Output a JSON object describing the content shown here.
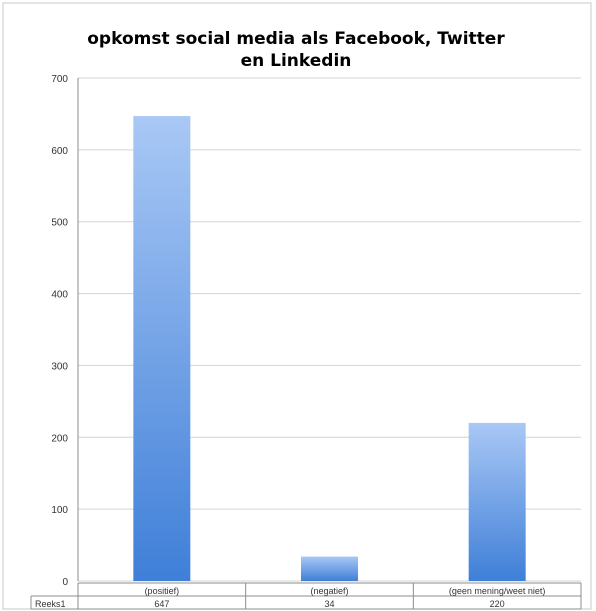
{
  "chart_data": {
    "type": "bar",
    "title_line1": "opkomst social media als Facebook, Twitter",
    "title_line2": "en Linkedin",
    "categories": [
      "(positief)",
      "(negatief)",
      "(geen mening/weet niet)"
    ],
    "series": [
      {
        "name": "Reeks1",
        "values": [
          647,
          34,
          220
        ]
      }
    ],
    "value_labels": [
      "647",
      "34",
      "220"
    ],
    "ylim": [
      0,
      700
    ],
    "yticks": [
      0,
      100,
      200,
      300,
      400,
      500,
      600,
      700
    ],
    "grid": true,
    "legend": "none",
    "data_table": true,
    "colors": {
      "bar_light": "#a9c8f5",
      "bar_dark": "#3f7fd8",
      "grid": "#d3d3d3",
      "border": "#8c8c8c"
    }
  }
}
